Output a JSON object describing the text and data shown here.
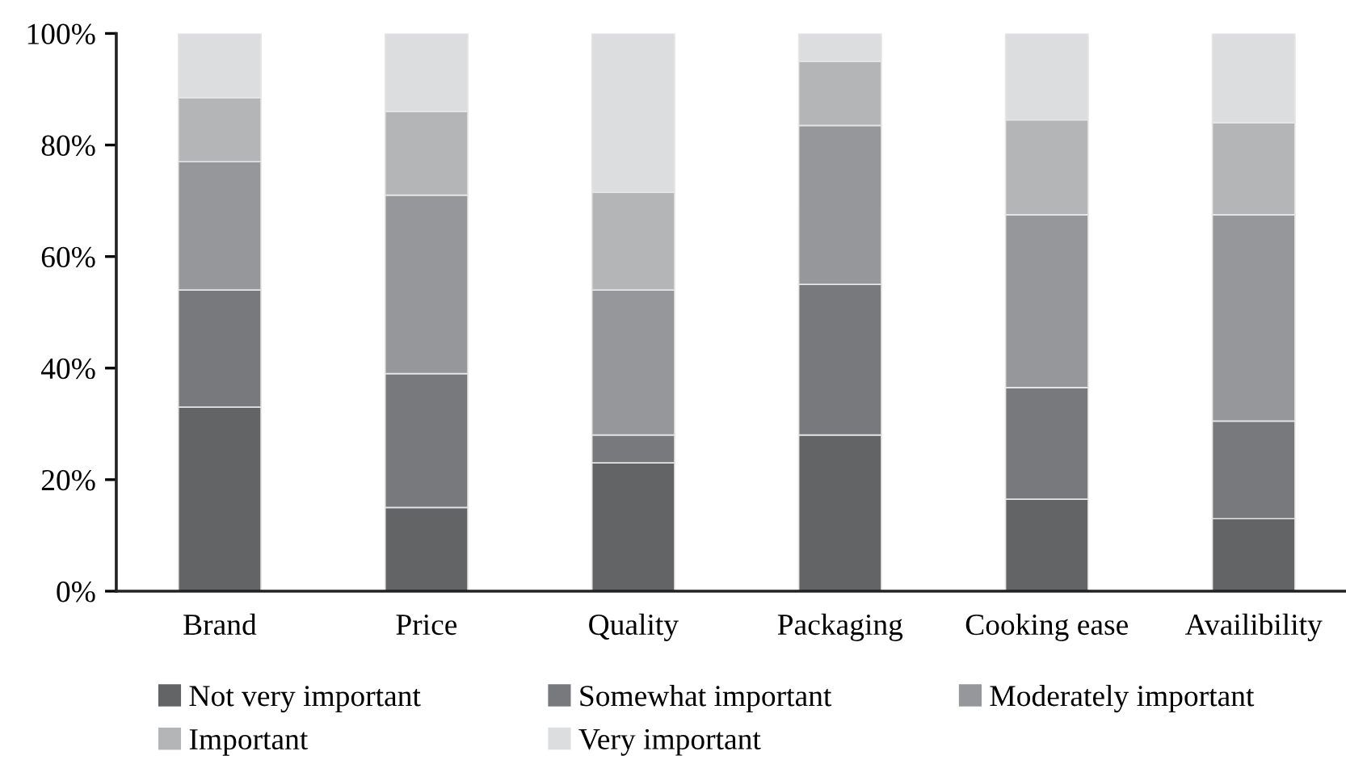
{
  "chart_data": {
    "type": "bar",
    "stacked": true,
    "legend": "bottom",
    "categories": [
      "Brand",
      "Price",
      "Quality",
      "Packaging",
      "Cooking ease",
      "Availibility"
    ],
    "ylim": [
      0,
      100
    ],
    "yticks": [
      {
        "value": 0,
        "label": "0%"
      },
      {
        "value": 20,
        "label": "20%"
      },
      {
        "value": 40,
        "label": "40%"
      },
      {
        "value": 60,
        "label": "60%"
      },
      {
        "value": 80,
        "label": "80%"
      },
      {
        "value": 100,
        "label": "100%"
      }
    ],
    "series": [
      {
        "name": "Not very important",
        "color": "#636466",
        "values": [
          33,
          15,
          23,
          28,
          16.5,
          13
        ]
      },
      {
        "name": "Somewhat important",
        "color": "#78797c",
        "values": [
          21,
          24,
          5,
          27,
          20,
          17.5
        ]
      },
      {
        "name": "Moderately important",
        "color": "#96979a",
        "values": [
          23,
          32,
          26,
          28.5,
          31,
          37
        ]
      },
      {
        "name": "Important",
        "color": "#b4b5b7",
        "values": [
          11.5,
          15,
          17.5,
          11.5,
          17,
          16.5
        ]
      },
      {
        "name": "Very important",
        "color": "#dcdddf",
        "values": [
          11.5,
          14,
          28.5,
          5,
          15.5,
          16
        ]
      }
    ]
  }
}
